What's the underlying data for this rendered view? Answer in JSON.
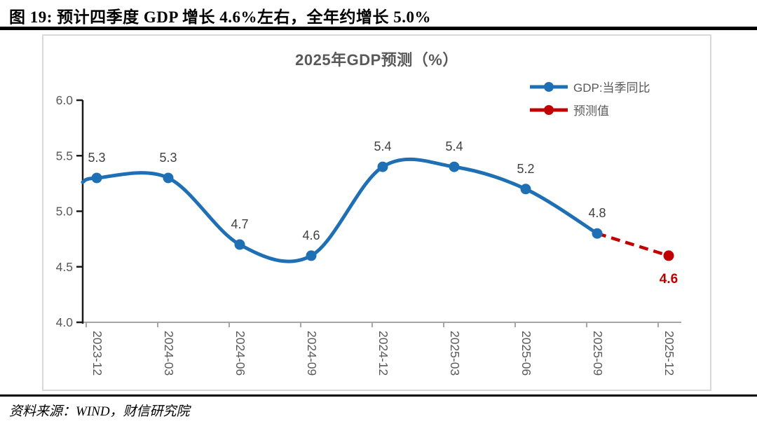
{
  "figure": {
    "caption": "图 19:  预计四季度 GDP 增长 4.6%左右，全年约增长 5.0%",
    "source": "资料来源：WIND，财信研究院"
  },
  "chart": {
    "title": "2025年GDP预测（%）",
    "legend": [
      {
        "label": "GDP:当季同比",
        "color": "#1F6FB5",
        "style": "solid"
      },
      {
        "label": "预测值",
        "color": "#C00000",
        "style": "dashed"
      }
    ]
  },
  "chart_data": {
    "type": "line",
    "title": "2025年GDP预测（%）",
    "categories": [
      "2023-12",
      "2024-03",
      "2024-06",
      "2024-09",
      "2024-12",
      "2025-03",
      "2025-06",
      "2025-09",
      "2025-12"
    ],
    "series": [
      {
        "name": "GDP:当季同比",
        "color": "#1F6FB5",
        "style": "solid",
        "smooth": true,
        "values": [
          5.3,
          5.3,
          4.7,
          4.6,
          5.4,
          5.4,
          5.2,
          4.8,
          null
        ]
      },
      {
        "name": "预测值",
        "color": "#C00000",
        "style": "dashed",
        "smooth": false,
        "values": [
          null,
          null,
          null,
          null,
          null,
          null,
          null,
          4.8,
          4.6
        ]
      }
    ],
    "ylim": [
      4.0,
      6.0
    ],
    "yticks": [
      6.0,
      5.5,
      5.0,
      4.5,
      4.0
    ],
    "ytick_format": 1,
    "grid": false,
    "legend_position": "top-right",
    "annotations": "data labels shown at every point; forecast label in red below point"
  },
  "style_colors": {
    "axis_y": "#1a1a1a",
    "axis_x": "#a6a6a6",
    "tick_label": "#595959",
    "data_label": "#404040",
    "forecast_label": "#C00000",
    "box_border": "#d9d9d9",
    "rule": "#000000"
  }
}
